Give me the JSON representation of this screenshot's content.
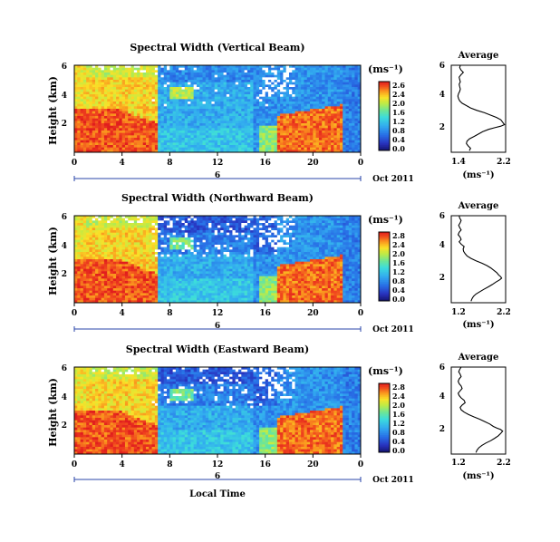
{
  "chart_data": [
    {
      "type": "heatmap",
      "title": "Spectral Width (Vertical Beam)",
      "ylabel": "Height (km)",
      "x_ticks": [
        "0",
        "4",
        "8",
        "12",
        "16",
        "20",
        "0"
      ],
      "y_ticks": [
        "2",
        "4",
        "6"
      ],
      "xlim": [
        0,
        24
      ],
      "ylim": [
        0.5,
        6
      ],
      "date_day": "6",
      "date_month": "Oct 2011",
      "colorbar": {
        "unit": "(ms⁻¹)",
        "ticks": [
          "2.6",
          "2.4",
          "2.0",
          "1.6",
          "1.2",
          "0.8",
          "0.4",
          "0.0"
        ],
        "range": [
          0,
          2.6
        ]
      }
    },
    {
      "type": "heatmap",
      "title": "Spectral Width (Northward Beam)",
      "ylabel": "Height (km)",
      "x_ticks": [
        "0",
        "4",
        "8",
        "12",
        "16",
        "20",
        "0"
      ],
      "y_ticks": [
        "2",
        "4",
        "6"
      ],
      "xlim": [
        0,
        24
      ],
      "ylim": [
        0.5,
        6
      ],
      "date_day": "6",
      "date_month": "Oct 2011",
      "colorbar": {
        "unit": "(ms⁻¹)",
        "ticks": [
          "2.8",
          "2.4",
          "2.0",
          "1.6",
          "1.2",
          "0.8",
          "0.4",
          "0.0"
        ],
        "range": [
          0,
          2.8
        ]
      }
    },
    {
      "type": "heatmap",
      "title": "Spectral Width (Eastward Beam)",
      "ylabel": "Height (km)",
      "x_ticks": [
        "0",
        "4",
        "8",
        "12",
        "16",
        "20",
        "0"
      ],
      "y_ticks": [
        "2",
        "4",
        "6"
      ],
      "xlim": [
        0,
        24
      ],
      "ylim": [
        0.5,
        6
      ],
      "date_day": "6",
      "date_month": "Oct 2011",
      "xlabel": "Local Time",
      "colorbar": {
        "unit": "(ms⁻¹)",
        "ticks": [
          "2.8",
          "2.4",
          "2.0",
          "1.6",
          "1.2",
          "0.8",
          "0.4",
          "0.0"
        ],
        "range": [
          0,
          2.8
        ]
      }
    },
    {
      "type": "line",
      "title": "Average",
      "xlabel": "(ms⁻¹)",
      "x_ticks": [
        "1.4",
        "2.2"
      ],
      "y_ticks": [
        "2",
        "4",
        "6"
      ],
      "xlim": [
        1.3,
        2.2
      ],
      "ylim": [
        0.5,
        6
      ],
      "x": [
        1.6,
        1.62,
        1.58,
        1.55,
        1.56,
        1.6,
        1.68,
        1.75,
        1.82,
        1.92,
        2.02,
        2.12,
        2.18,
        2.15,
        2.12,
        2.05,
        1.95,
        1.85,
        1.72,
        1.62,
        1.55,
        1.48,
        1.44,
        1.42,
        1.41,
        1.42,
        1.44,
        1.45,
        1.44,
        1.43,
        1.45,
        1.44,
        1.43,
        1.46,
        1.5,
        1.46,
        1.44,
        1.45
      ],
      "y": [
        0.6,
        0.75,
        0.9,
        1.05,
        1.2,
        1.35,
        1.5,
        1.65,
        1.8,
        1.95,
        2.05,
        2.15,
        2.25,
        2.4,
        2.55,
        2.7,
        2.85,
        3.0,
        3.15,
        3.3,
        3.45,
        3.6,
        3.75,
        3.9,
        4.05,
        4.2,
        4.35,
        4.5,
        4.65,
        4.8,
        4.95,
        5.1,
        5.25,
        5.4,
        5.55,
        5.7,
        5.85,
        6.0
      ]
    },
    {
      "type": "line",
      "title": "Average",
      "xlabel": "(ms⁻¹)",
      "x_ticks": [
        "1.2",
        "2.2"
      ],
      "y_ticks": [
        "2",
        "4",
        "6"
      ],
      "xlim": [
        1.1,
        2.2
      ],
      "ylim": [
        0.5,
        6
      ],
      "x": [
        1.5,
        1.52,
        1.55,
        1.6,
        1.68,
        1.76,
        1.85,
        1.93,
        2.0,
        2.08,
        2.12,
        2.1,
        2.06,
        2.02,
        1.96,
        1.9,
        1.82,
        1.72,
        1.6,
        1.5,
        1.42,
        1.38,
        1.35,
        1.34,
        1.36,
        1.3,
        1.26,
        1.3,
        1.28,
        1.24,
        1.26,
        1.3,
        1.27,
        1.25,
        1.28,
        1.3,
        1.27,
        1.26
      ],
      "y": [
        0.6,
        0.75,
        0.9,
        1.05,
        1.2,
        1.35,
        1.5,
        1.65,
        1.8,
        1.95,
        2.05,
        2.15,
        2.25,
        2.4,
        2.55,
        2.7,
        2.85,
        3.0,
        3.15,
        3.3,
        3.45,
        3.6,
        3.75,
        3.9,
        4.05,
        4.2,
        4.35,
        4.5,
        4.65,
        4.8,
        4.95,
        5.1,
        5.25,
        5.4,
        5.55,
        5.7,
        5.85,
        6.0
      ]
    },
    {
      "type": "line",
      "title": "Average",
      "xlabel": "(ms⁻¹)",
      "x_ticks": [
        "1.2",
        "2.2"
      ],
      "y_ticks": [
        "2",
        "4",
        "6"
      ],
      "xlim": [
        1.1,
        2.2
      ],
      "ylim": [
        0.5,
        6
      ],
      "x": [
        1.6,
        1.62,
        1.66,
        1.72,
        1.8,
        1.9,
        1.98,
        2.05,
        2.1,
        2.14,
        2.1,
        2.02,
        1.95,
        1.88,
        1.78,
        1.68,
        1.56,
        1.45,
        1.36,
        1.3,
        1.28,
        1.32,
        1.38,
        1.36,
        1.3,
        1.26,
        1.24,
        1.28,
        1.32,
        1.3,
        1.26,
        1.24,
        1.26,
        1.3,
        1.28,
        1.25,
        1.27,
        1.3
      ],
      "y": [
        0.6,
        0.75,
        0.9,
        1.05,
        1.2,
        1.35,
        1.5,
        1.65,
        1.8,
        1.95,
        2.05,
        2.15,
        2.25,
        2.4,
        2.55,
        2.7,
        2.85,
        3.0,
        3.15,
        3.3,
        3.45,
        3.6,
        3.75,
        3.9,
        4.05,
        4.2,
        4.35,
        4.5,
        4.65,
        4.8,
        4.95,
        5.1,
        5.25,
        5.4,
        5.55,
        5.7,
        5.85,
        6.0
      ]
    }
  ]
}
